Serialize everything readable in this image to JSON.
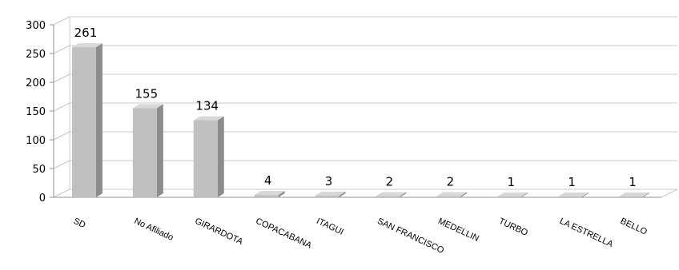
{
  "chart_data": {
    "type": "bar",
    "categories": [
      "SD",
      "No Afiliado",
      "GIRARDOTA",
      "COPACABANA",
      "ITAGUI",
      "SAN FRANCISCO",
      "MEDELLIN",
      "TURBO",
      "LA ESTRELLA",
      "BELLO"
    ],
    "values": [
      261,
      155,
      134,
      4,
      3,
      2,
      2,
      1,
      1,
      1
    ],
    "data_labels": [
      "261",
      "155",
      "134",
      "4",
      "3",
      "2",
      "2",
      "1",
      "1",
      "1"
    ],
    "y_ticks": [
      "0",
      "50",
      "100",
      "150",
      "200",
      "250",
      "300"
    ],
    "ylim": [
      0,
      300
    ],
    "grid": true,
    "title": "",
    "xlabel": "",
    "ylabel": "",
    "colors": {
      "bar_front": "#c0c0c0",
      "bar_side": "#8c8c8c",
      "bar_top": "#d8d8d8",
      "grid": "#c8c8c8",
      "axis": "#909090"
    }
  }
}
